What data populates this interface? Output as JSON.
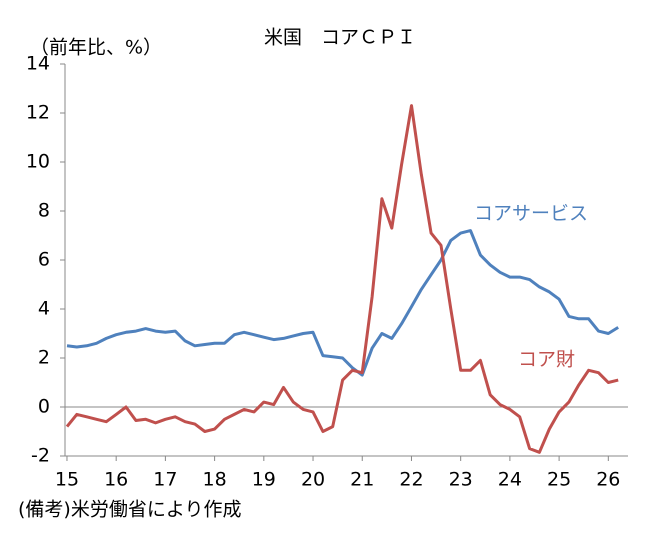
{
  "chart_data": {
    "type": "line",
    "title": "米国　コアＣＰＩ",
    "y_unit_label": "（前年比、%）",
    "note": "(備考)米労働省により作成",
    "x": [
      15.0,
      15.2,
      15.4,
      15.6,
      15.8,
      16.0,
      16.2,
      16.4,
      16.6,
      16.8,
      17.0,
      17.2,
      17.4,
      17.6,
      17.8,
      18.0,
      18.2,
      18.4,
      18.6,
      18.8,
      19.0,
      19.2,
      19.4,
      19.6,
      19.8,
      20.0,
      20.2,
      20.4,
      20.6,
      20.8,
      21.0,
      21.2,
      21.4,
      21.6,
      21.8,
      22.0,
      22.2,
      22.4,
      22.6,
      22.8,
      23.0,
      23.2,
      23.4,
      23.6,
      23.8,
      24.0,
      24.2,
      24.4,
      24.6,
      24.8,
      25.0,
      25.2,
      25.4,
      25.6,
      25.8,
      26.0,
      26.2
    ],
    "series": [
      {
        "name": "コアサービス",
        "color": "#4f81bd",
        "values": [
          2.5,
          2.45,
          2.5,
          2.6,
          2.8,
          2.95,
          3.05,
          3.1,
          3.2,
          3.1,
          3.05,
          3.1,
          2.7,
          2.5,
          2.55,
          2.6,
          2.6,
          2.95,
          3.05,
          2.95,
          2.85,
          2.75,
          2.8,
          2.9,
          3.0,
          3.05,
          2.1,
          2.05,
          2.0,
          1.6,
          1.3,
          2.4,
          3.0,
          2.8,
          3.4,
          4.1,
          4.8,
          5.4,
          6.0,
          6.8,
          7.1,
          7.2,
          6.2,
          5.8,
          5.5,
          5.3,
          5.3,
          5.2,
          4.9,
          4.7,
          4.4,
          3.7,
          3.6,
          3.6,
          3.1,
          3.0,
          3.25
        ]
      },
      {
        "name": "コア財",
        "color": "#c0504d",
        "values": [
          -0.8,
          -0.3,
          -0.4,
          -0.5,
          -0.6,
          -0.3,
          0.0,
          -0.55,
          -0.5,
          -0.65,
          -0.5,
          -0.4,
          -0.6,
          -0.7,
          -1.0,
          -0.9,
          -0.5,
          -0.3,
          -0.1,
          -0.2,
          0.2,
          0.1,
          0.8,
          0.2,
          -0.1,
          -0.2,
          -1.0,
          -0.8,
          1.1,
          1.5,
          1.4,
          4.5,
          8.5,
          7.3,
          9.9,
          12.3,
          9.5,
          7.1,
          6.6,
          4.0,
          1.5,
          1.5,
          1.9,
          0.5,
          0.1,
          -0.1,
          -0.4,
          -1.7,
          -1.85,
          -0.9,
          -0.2,
          0.2,
          0.9,
          1.5,
          1.4,
          1.0,
          1.1
        ]
      }
    ],
    "xlim": [
      14.96,
      26.4
    ],
    "xticks": [
      15,
      16,
      17,
      18,
      19,
      20,
      21,
      22,
      23,
      24,
      25,
      26
    ],
    "ylim": [
      -2,
      14
    ],
    "yticks": [
      -2,
      0,
      2,
      4,
      6,
      8,
      10,
      12,
      14
    ]
  }
}
